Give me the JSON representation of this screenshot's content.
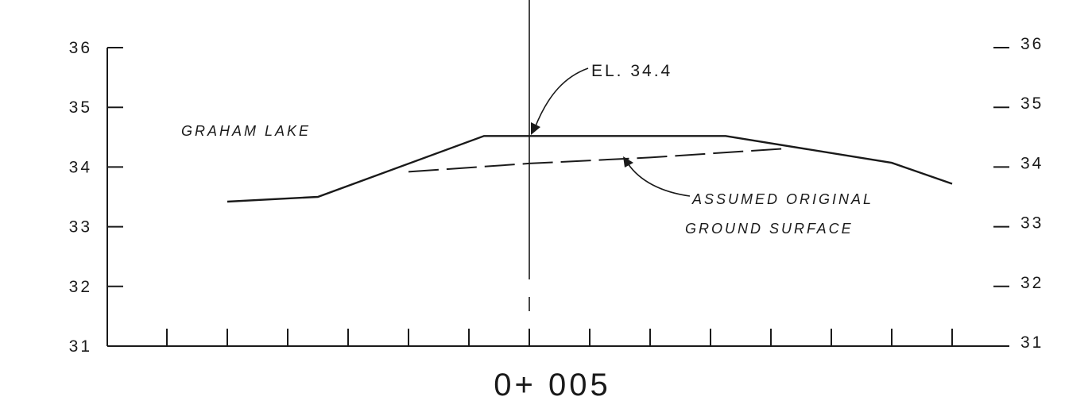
{
  "chart_data": {
    "type": "line",
    "left_axis_ticks": [
      "36",
      "35",
      "34",
      "33",
      "32",
      "31"
    ],
    "right_axis_ticks": [
      "36",
      "35",
      "34",
      "33",
      "32",
      "31"
    ],
    "ylim": [
      31,
      36
    ],
    "x_tick_count": 14,
    "series": [
      {
        "style": "solid",
        "points": [
          [
            -5,
            33.42
          ],
          [
            -3.5,
            33.5
          ],
          [
            -0.75,
            34.52
          ],
          [
            0,
            34.52
          ],
          [
            3.25,
            34.52
          ],
          [
            6,
            34.07
          ],
          [
            7,
            33.72
          ]
        ]
      },
      {
        "style": "dashed",
        "points": [
          [
            -2,
            33.92
          ],
          [
            0,
            34.06
          ],
          [
            2,
            34.16
          ],
          [
            4.25,
            34.31
          ]
        ]
      }
    ],
    "annotations": {
      "elevation_label": "EL. 34.4",
      "lake_label": "GRAHAM LAKE",
      "ground_label_line1": "ASSUMED ORIGINAL",
      "ground_label_line2": "GROUND SURFACE"
    },
    "station_label": "0+ 005"
  }
}
